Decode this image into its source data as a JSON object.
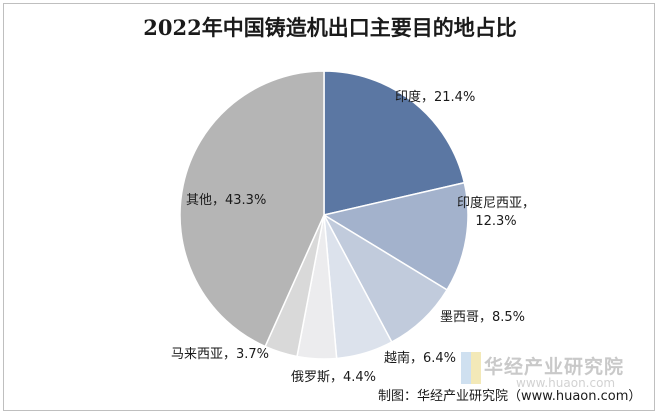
{
  "chart_data": {
    "type": "pie",
    "title": "2022年中国铸造机出口主要目的地占比",
    "start_angle_deg": 0,
    "direction": "clockwise",
    "slices": [
      {
        "label": "印度，21.4%",
        "category": "印度",
        "value": 21.4,
        "color": "#5b77a3"
      },
      {
        "label": "印度尼西亚，12.3%",
        "category": "印度尼西亚",
        "value": 12.3,
        "color": "#a3b2cc"
      },
      {
        "label": "墨西哥，8.5%",
        "category": "墨西哥",
        "value": 8.5,
        "color": "#c1cbdc"
      },
      {
        "label": "越南，6.4%",
        "category": "越南",
        "value": 6.4,
        "color": "#dce2ec"
      },
      {
        "label": "俄罗斯，4.4%",
        "category": "俄罗斯",
        "value": 4.4,
        "color": "#ececee"
      },
      {
        "label": "马来西亚，3.7%",
        "category": "马来西亚",
        "value": 3.7,
        "color": "#d9d9d9"
      },
      {
        "label": "其他，43.3%",
        "category": "其他",
        "value": 43.3,
        "color": "#b5b5b5"
      }
    ]
  },
  "source": "制图：华经产业研究院（www.huaon.com）",
  "watermark": {
    "name": "华经产业研究院",
    "url": "www.huaon.com"
  }
}
